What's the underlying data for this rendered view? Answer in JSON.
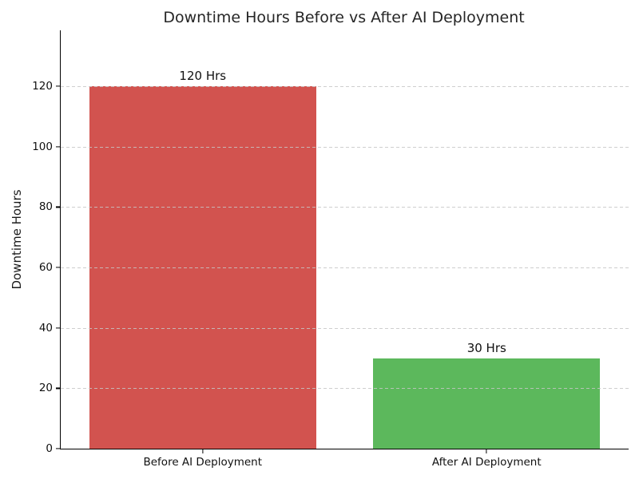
{
  "chart_data": {
    "type": "bar",
    "title": "Downtime Hours Before vs After AI Deployment",
    "xlabel": "",
    "ylabel": "Downtime Hours",
    "categories": [
      "Before AI Deployment",
      "After AI Deployment"
    ],
    "values": [
      120,
      30
    ],
    "bar_value_labels": [
      "120 Hrs",
      "30 Hrs"
    ],
    "bar_colors": [
      "#d2534f",
      "#5cb85c"
    ],
    "yticks": [
      0,
      20,
      40,
      60,
      80,
      100,
      120
    ],
    "ytick_labels": [
      "0",
      "20",
      "40",
      "60",
      "80",
      "100",
      "120"
    ],
    "ylim": [
      0,
      138.5
    ],
    "bar_relative_width": 0.8,
    "grid": "horizontal-dashed",
    "grid_color": "#c6c6c6",
    "grid_above_bars": true,
    "legend": "none",
    "background_color": "#ffffff",
    "spine_color": "#000000"
  }
}
